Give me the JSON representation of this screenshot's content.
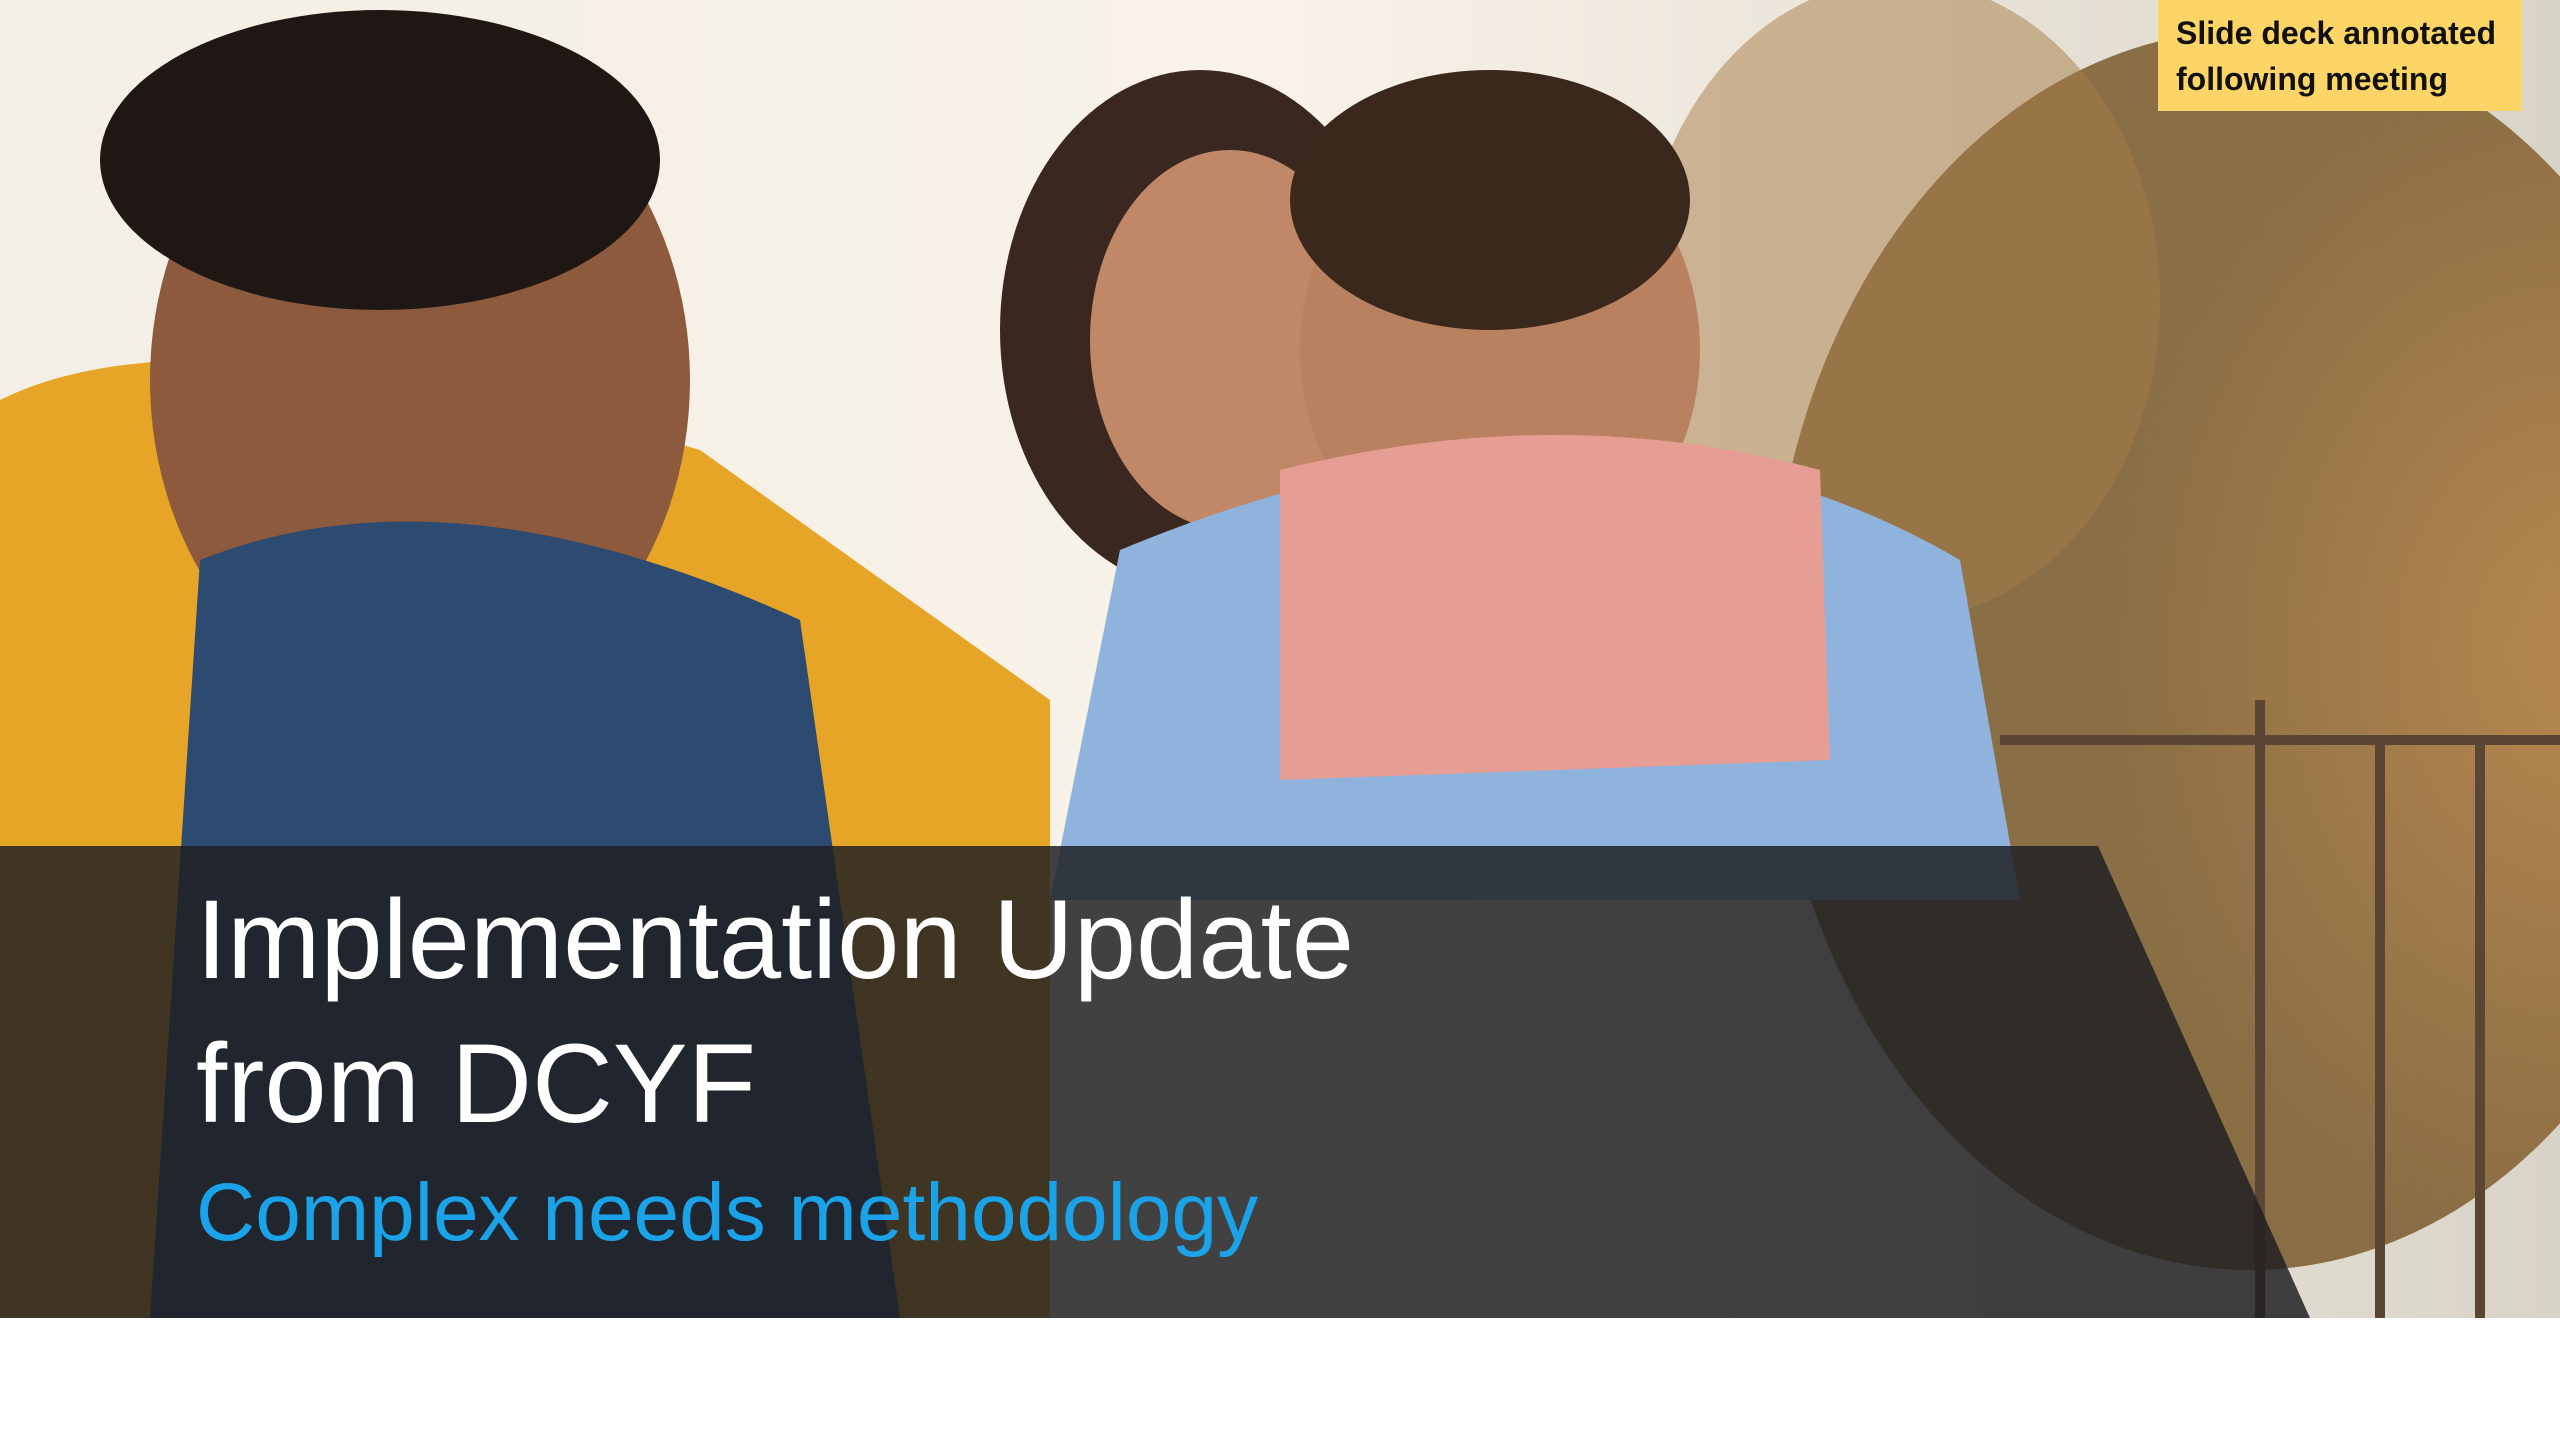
{
  "slide": {
    "title": [
      "Implementation Update",
      "from DCYF"
    ],
    "subtitle": "Complex needs methodology"
  },
  "note": {
    "lines": [
      "Slide deck annotated",
      "following meeting"
    ]
  }
}
